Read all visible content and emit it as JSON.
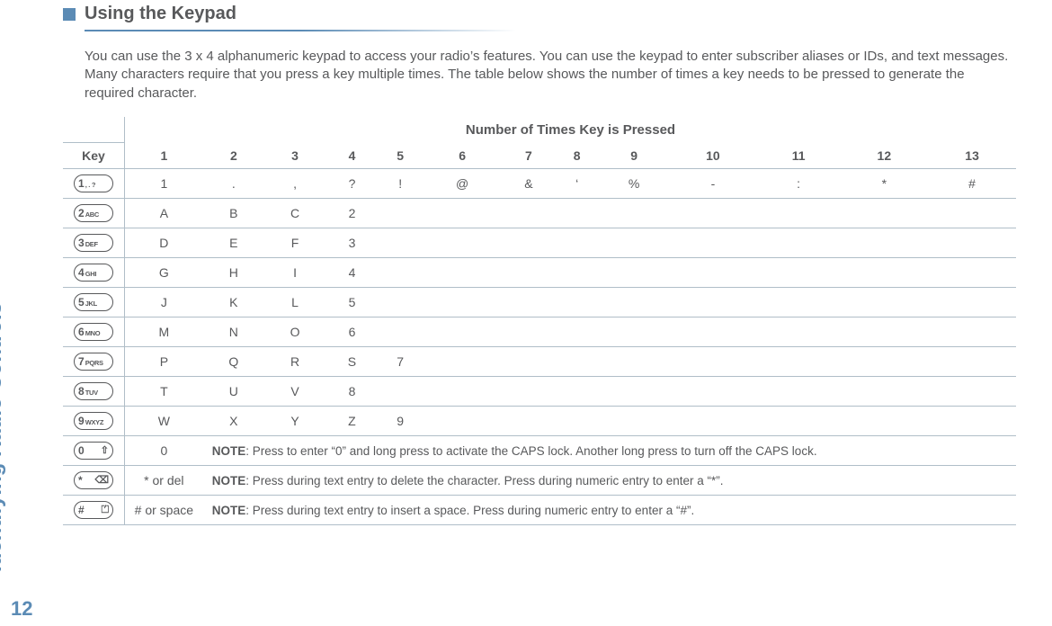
{
  "sidebar": {
    "label": "Identifying Radio Controls",
    "page_num": "12"
  },
  "heading": "Using the Keypad",
  "intro": "You can use the 3 x 4 alphanumeric keypad to access your radio’s features. You can use the keypad to enter subscriber aliases or IDs, and text messages. Many characters require that you press a key multiple times. The table below shows the number of times a key needs to be pressed to generate the required character.",
  "table": {
    "key_header": "Key",
    "super_header": "Number of Times Key is Pressed",
    "col_headers": [
      "1",
      "2",
      "3",
      "4",
      "5",
      "6",
      "7",
      "8",
      "9",
      "10",
      "11",
      "12",
      "13"
    ],
    "rows": [
      {
        "key_big": "1",
        "key_small": ", . ?",
        "vals": [
          "1",
          ".",
          ",",
          "?",
          "!",
          "@",
          "&",
          "‘",
          "%",
          "-",
          ":",
          "*",
          "#"
        ]
      },
      {
        "key_big": "2",
        "key_small": "ABC",
        "vals": [
          "A",
          "B",
          "C",
          "2",
          "",
          "",
          "",
          "",
          "",
          "",
          "",
          "",
          ""
        ]
      },
      {
        "key_big": "3",
        "key_small": "DEF",
        "vals": [
          "D",
          "E",
          "F",
          "3",
          "",
          "",
          "",
          "",
          "",
          "",
          "",
          "",
          ""
        ]
      },
      {
        "key_big": "4",
        "key_small": "GHI",
        "vals": [
          "G",
          "H",
          "I",
          "4",
          "",
          "",
          "",
          "",
          "",
          "",
          "",
          "",
          ""
        ]
      },
      {
        "key_big": "5",
        "key_small": "JKL",
        "vals": [
          "J",
          "K",
          "L",
          "5",
          "",
          "",
          "",
          "",
          "",
          "",
          "",
          "",
          ""
        ]
      },
      {
        "key_big": "6",
        "key_small": "MNO",
        "vals": [
          "M",
          "N",
          "O",
          "6",
          "",
          "",
          "",
          "",
          "",
          "",
          "",
          "",
          ""
        ]
      },
      {
        "key_big": "7",
        "key_small": "PQRS",
        "vals": [
          "P",
          "Q",
          "R",
          "S",
          "7",
          "",
          "",
          "",
          "",
          "",
          "",
          "",
          ""
        ]
      },
      {
        "key_big": "8",
        "key_small": "TUV",
        "vals": [
          "T",
          "U",
          "V",
          "8",
          "",
          "",
          "",
          "",
          "",
          "",
          "",
          "",
          ""
        ]
      },
      {
        "key_big": "9",
        "key_small": "WXYZ",
        "vals": [
          "W",
          "X",
          "Y",
          "Z",
          "9",
          "",
          "",
          "",
          "",
          "",
          "",
          "",
          ""
        ]
      },
      {
        "key_big": "0",
        "key_small": "",
        "sym": "⇧",
        "vals": [
          "0"
        ],
        "note_bold": "NOTE",
        "note": ": Press to enter “0” and long press to activate the CAPS lock. Another long press to turn off the CAPS lock."
      },
      {
        "key_big": "*",
        "key_small": "",
        "sym": "⌫",
        "vals": [
          "* or del"
        ],
        "note_bold": "NOTE",
        "note": ": Press during text entry to delete the character. Press during numeric entry to enter a “*”."
      },
      {
        "key_big": "#",
        "key_small": "",
        "sym": "⏍",
        "vals": [
          "# or space"
        ],
        "note_bold": "NOTE",
        "note": ": Press during text entry to insert a space. Press during numeric entry to enter a “#”."
      }
    ]
  },
  "colors": {
    "accent": "#5b8bb5",
    "text": "#58595b",
    "rule": "#b0bec8"
  }
}
